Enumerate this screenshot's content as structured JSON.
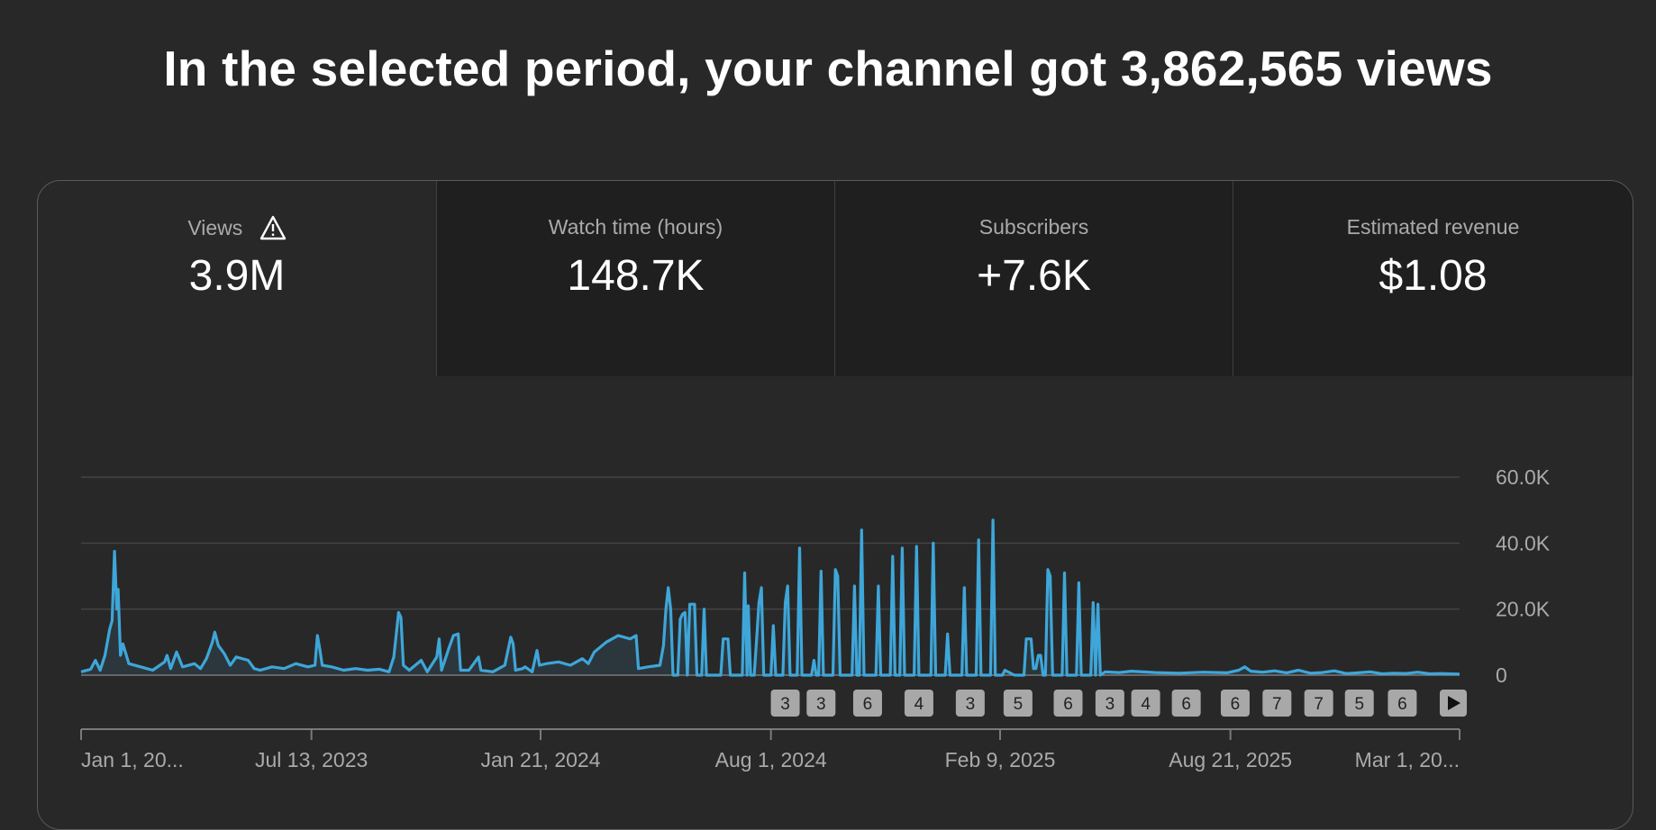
{
  "headline": "In the selected period, your channel got 3,862,565 views",
  "tabs": [
    {
      "label": "Views",
      "value": "3.9M",
      "selected": true,
      "warning": true
    },
    {
      "label": "Watch time (hours)",
      "value": "148.7K",
      "selected": false
    },
    {
      "label": "Subscribers",
      "value": "+7.6K",
      "selected": false
    },
    {
      "label": "Estimated revenue",
      "value": "$1.08",
      "selected": false
    }
  ],
  "colors": {
    "line": "#3ea6d9",
    "background": "#282828",
    "tab_inactive": "#1f1f1f",
    "marker": "#a8a8a8"
  },
  "chart_data": {
    "type": "line",
    "series_name": "Views",
    "ylim": [
      0,
      60000
    ],
    "yticks": [
      {
        "value": 60000,
        "label": "60.0K"
      },
      {
        "value": 40000,
        "label": "40.0K"
      },
      {
        "value": 20000,
        "label": "20.0K"
      },
      {
        "value": 0,
        "label": "0"
      }
    ],
    "x_range_days": [
      0,
      1155
    ],
    "xticks": [
      {
        "day": 0,
        "label": "Jan 1, 20..."
      },
      {
        "day": 193,
        "label": "Jul 13, 2023"
      },
      {
        "day": 385,
        "label": "Jan 21, 2024"
      },
      {
        "day": 578,
        "label": "Aug 1, 2024"
      },
      {
        "day": 770,
        "label": "Feb 9, 2025"
      },
      {
        "day": 963,
        "label": "Aug 21, 2025"
      },
      {
        "day": 1155,
        "label": "Mar 1, 20..."
      }
    ],
    "points": [
      [
        0,
        1000
      ],
      [
        8,
        1800
      ],
      [
        12,
        4500
      ],
      [
        16,
        1500
      ],
      [
        20,
        6000
      ],
      [
        24,
        14000
      ],
      [
        26,
        16500
      ],
      [
        28,
        37500
      ],
      [
        30,
        20000
      ],
      [
        31,
        26000
      ],
      [
        33,
        6000
      ],
      [
        35,
        9500
      ],
      [
        40,
        3500
      ],
      [
        50,
        2500
      ],
      [
        60,
        1500
      ],
      [
        70,
        4000
      ],
      [
        72,
        6000
      ],
      [
        75,
        2000
      ],
      [
        80,
        7000
      ],
      [
        85,
        2500
      ],
      [
        95,
        3500
      ],
      [
        100,
        2000
      ],
      [
        105,
        5000
      ],
      [
        108,
        8000
      ],
      [
        110,
        10000
      ],
      [
        112,
        13000
      ],
      [
        115,
        9000
      ],
      [
        120,
        6500
      ],
      [
        125,
        3000
      ],
      [
        130,
        5500
      ],
      [
        140,
        4500
      ],
      [
        145,
        2000
      ],
      [
        150,
        1500
      ],
      [
        160,
        2500
      ],
      [
        170,
        2000
      ],
      [
        180,
        3500
      ],
      [
        190,
        2500
      ],
      [
        196,
        3000
      ],
      [
        198,
        12000
      ],
      [
        200,
        8000
      ],
      [
        202,
        3000
      ],
      [
        210,
        2500
      ],
      [
        220,
        1500
      ],
      [
        230,
        2000
      ],
      [
        240,
        1500
      ],
      [
        250,
        1800
      ],
      [
        258,
        1000
      ],
      [
        262,
        5500
      ],
      [
        266,
        19000
      ],
      [
        268,
        17500
      ],
      [
        270,
        3000
      ],
      [
        275,
        1500
      ],
      [
        285,
        4500
      ],
      [
        290,
        1000
      ],
      [
        298,
        5500
      ],
      [
        300,
        11000
      ],
      [
        302,
        1500
      ],
      [
        308,
        8000
      ],
      [
        312,
        12000
      ],
      [
        316,
        12500
      ],
      [
        318,
        1500
      ],
      [
        325,
        1500
      ],
      [
        333,
        5500
      ],
      [
        335,
        1500
      ],
      [
        345,
        1000
      ],
      [
        355,
        3000
      ],
      [
        360,
        11500
      ],
      [
        362,
        9500
      ],
      [
        364,
        1500
      ],
      [
        370,
        2000
      ],
      [
        372,
        2500
      ],
      [
        378,
        1000
      ],
      [
        382,
        7500
      ],
      [
        384,
        3000
      ],
      [
        390,
        3500
      ],
      [
        400,
        4000
      ],
      [
        410,
        3000
      ],
      [
        420,
        5000
      ],
      [
        425,
        3500
      ],
      [
        430,
        7000
      ],
      [
        440,
        10000
      ],
      [
        450,
        12000
      ],
      [
        460,
        11000
      ],
      [
        465,
        12000
      ],
      [
        467,
        2000
      ],
      [
        475,
        2500
      ],
      [
        485,
        3000
      ],
      [
        488,
        9000
      ],
      [
        490,
        20000
      ],
      [
        492,
        26500
      ],
      [
        494,
        20000
      ],
      [
        496,
        0
      ],
      [
        500,
        0
      ],
      [
        502,
        17000
      ],
      [
        504,
        18500
      ],
      [
        506,
        19000
      ],
      [
        508,
        0
      ],
      [
        510,
        21500
      ],
      [
        514,
        21500
      ],
      [
        516,
        0
      ],
      [
        520,
        0
      ],
      [
        522,
        20000
      ],
      [
        524,
        0
      ],
      [
        536,
        0
      ],
      [
        538,
        11000
      ],
      [
        542,
        11000
      ],
      [
        544,
        0
      ],
      [
        554,
        0
      ],
      [
        556,
        31000
      ],
      [
        558,
        0
      ],
      [
        559,
        21000
      ],
      [
        561,
        0
      ],
      [
        564,
        0
      ],
      [
        566,
        11000
      ],
      [
        568,
        22000
      ],
      [
        570,
        26500
      ],
      [
        572,
        0
      ],
      [
        578,
        0
      ],
      [
        580,
        15000
      ],
      [
        582,
        0
      ],
      [
        588,
        0
      ],
      [
        590,
        22000
      ],
      [
        592,
        27000
      ],
      [
        594,
        0
      ],
      [
        600,
        0
      ],
      [
        602,
        38500
      ],
      [
        604,
        0
      ],
      [
        612,
        0
      ],
      [
        614,
        4500
      ],
      [
        616,
        0
      ],
      [
        618,
        0
      ],
      [
        620,
        31500
      ],
      [
        622,
        0
      ],
      [
        630,
        0
      ],
      [
        632,
        32000
      ],
      [
        634,
        30000
      ],
      [
        636,
        0
      ],
      [
        646,
        0
      ],
      [
        648,
        27000
      ],
      [
        650,
        0
      ],
      [
        652,
        0
      ],
      [
        654,
        44000
      ],
      [
        656,
        0
      ],
      [
        666,
        0
      ],
      [
        668,
        27000
      ],
      [
        670,
        0
      ],
      [
        678,
        0
      ],
      [
        680,
        36000
      ],
      [
        682,
        0
      ],
      [
        686,
        0
      ],
      [
        688,
        38500
      ],
      [
        690,
        0
      ],
      [
        698,
        0
      ],
      [
        700,
        39000
      ],
      [
        702,
        0
      ],
      [
        712,
        0
      ],
      [
        714,
        40000
      ],
      [
        716,
        0
      ],
      [
        724,
        0
      ],
      [
        726,
        12500
      ],
      [
        728,
        0
      ],
      [
        738,
        0
      ],
      [
        740,
        26500
      ],
      [
        742,
        0
      ],
      [
        750,
        0
      ],
      [
        752,
        41000
      ],
      [
        754,
        0
      ],
      [
        756,
        0
      ],
      [
        758,
        0
      ],
      [
        762,
        0
      ],
      [
        764,
        47000
      ],
      [
        766,
        0
      ],
      [
        772,
        0
      ],
      [
        774,
        1500
      ],
      [
        782,
        0
      ],
      [
        790,
        0
      ],
      [
        792,
        11000
      ],
      [
        796,
        11000
      ],
      [
        798,
        2000
      ],
      [
        800,
        2000
      ],
      [
        802,
        6000
      ],
      [
        804,
        6000
      ],
      [
        806,
        0
      ],
      [
        808,
        0
      ],
      [
        810,
        32000
      ],
      [
        812,
        30000
      ],
      [
        814,
        0
      ],
      [
        822,
        0
      ],
      [
        824,
        31000
      ],
      [
        826,
        0
      ],
      [
        834,
        0
      ],
      [
        836,
        28000
      ],
      [
        838,
        0
      ],
      [
        846,
        0
      ],
      [
        848,
        22000
      ],
      [
        850,
        0
      ],
      [
        852,
        21500
      ],
      [
        854,
        0
      ],
      [
        858,
        1000
      ],
      [
        870,
        800
      ],
      [
        880,
        1200
      ],
      [
        900,
        800
      ],
      [
        920,
        600
      ],
      [
        940,
        900
      ],
      [
        960,
        700
      ],
      [
        970,
        1500
      ],
      [
        975,
        2500
      ],
      [
        980,
        1200
      ],
      [
        990,
        900
      ],
      [
        1000,
        1300
      ],
      [
        1010,
        700
      ],
      [
        1020,
        1500
      ],
      [
        1030,
        600
      ],
      [
        1040,
        800
      ],
      [
        1050,
        1300
      ],
      [
        1060,
        500
      ],
      [
        1070,
        700
      ],
      [
        1080,
        1000
      ],
      [
        1090,
        400
      ],
      [
        1100,
        600
      ],
      [
        1110,
        500
      ],
      [
        1120,
        900
      ],
      [
        1130,
        400
      ],
      [
        1140,
        500
      ],
      [
        1155,
        300
      ]
    ]
  },
  "markers": [
    {
      "day": 590,
      "label": "3"
    },
    {
      "day": 620,
      "label": "3"
    },
    {
      "day": 659,
      "label": "6"
    },
    {
      "day": 702,
      "label": "4"
    },
    {
      "day": 745,
      "label": "3"
    },
    {
      "day": 785,
      "label": "5"
    },
    {
      "day": 827,
      "label": "6"
    },
    {
      "day": 862,
      "label": "3"
    },
    {
      "day": 892,
      "label": "4"
    },
    {
      "day": 926,
      "label": "6"
    },
    {
      "day": 967,
      "label": "6"
    },
    {
      "day": 1002,
      "label": "7"
    },
    {
      "day": 1037,
      "label": "7"
    },
    {
      "day": 1071,
      "label": "5"
    },
    {
      "day": 1107,
      "label": "6"
    }
  ],
  "next_markers_icon": "play-next-icon"
}
